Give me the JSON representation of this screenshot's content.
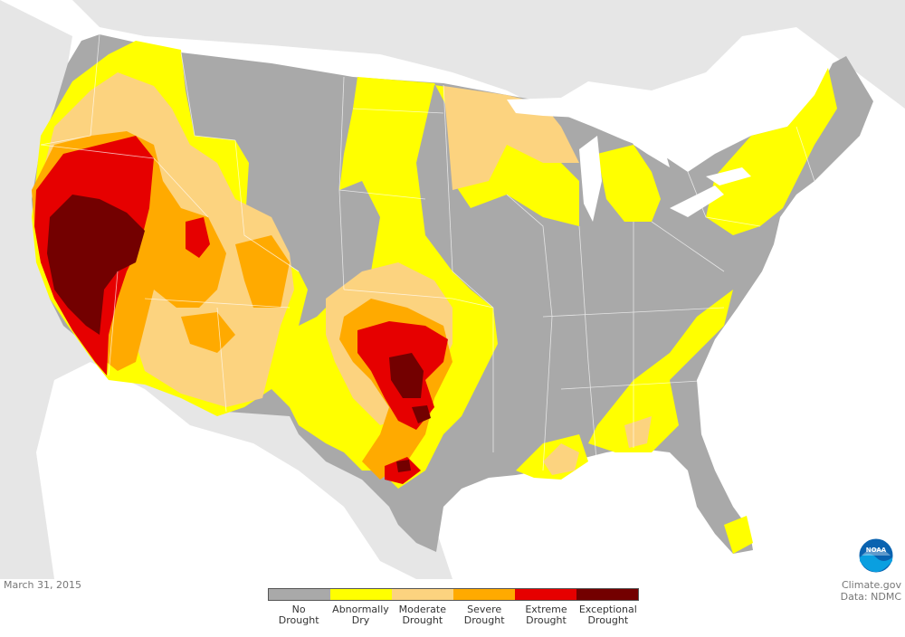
{
  "map": {
    "date": "March 31, 2015",
    "credit_line1": "Climate.gov",
    "credit_line2": "Data: NDMC",
    "logo_text": "NOAA",
    "colors": {
      "land_bg": "#dcdcdc",
      "water": "#ffffff",
      "no_drought": "#a9a9a9",
      "abnormally_dry": "#ffff00",
      "moderate": "#fcd37f",
      "severe": "#ffaa00",
      "extreme": "#e60000",
      "exceptional": "#730000",
      "state_lines": "#ffffff"
    }
  },
  "legend": [
    {
      "line1": "No",
      "line2": "Drought",
      "color": "#a9a9a9"
    },
    {
      "line1": "Abnormally",
      "line2": "Dry",
      "color": "#ffff00"
    },
    {
      "line1": "Moderate",
      "line2": "Drought",
      "color": "#fcd37f"
    },
    {
      "line1": "Severe",
      "line2": "Drought",
      "color": "#ffaa00"
    },
    {
      "line1": "Extreme",
      "line2": "Drought",
      "color": "#e60000"
    },
    {
      "line1": "Exceptional",
      "line2": "Drought",
      "color": "#730000"
    }
  ]
}
